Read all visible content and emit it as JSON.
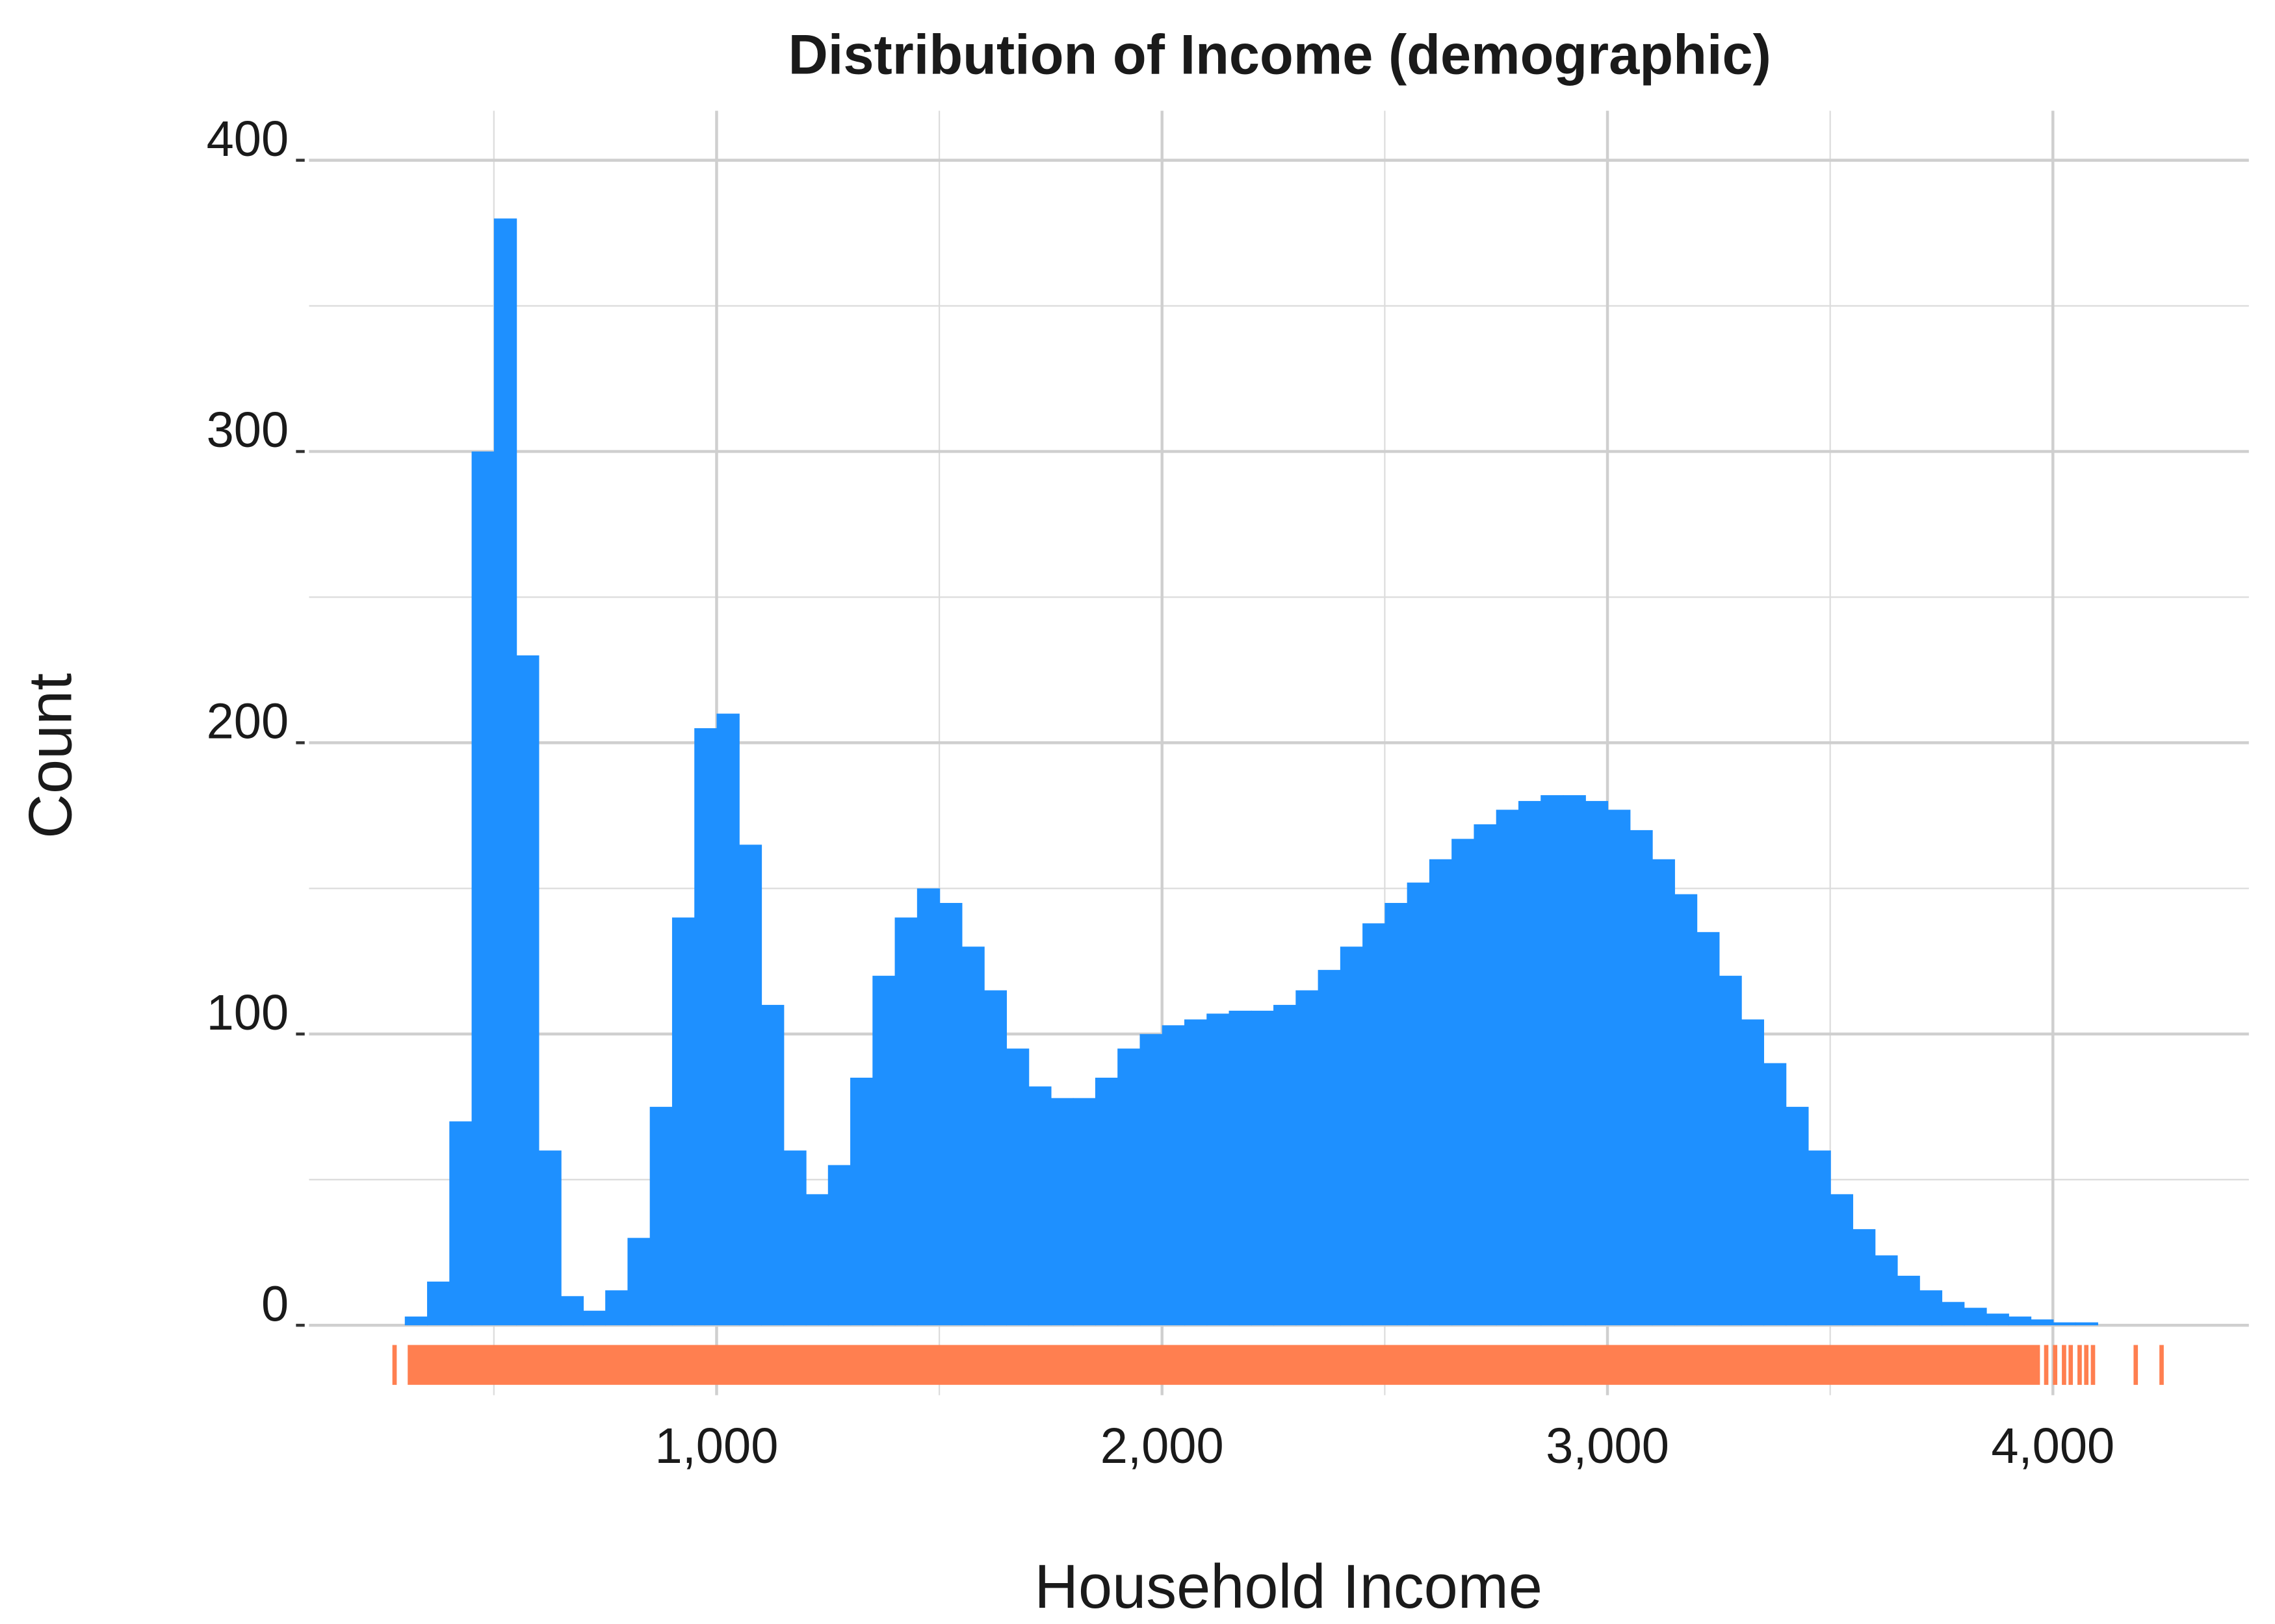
{
  "chart_data": {
    "type": "histogram",
    "title": "Distribution of Income (demographic)",
    "x_label": "Household Income",
    "y_label": "Count",
    "color": "#1e90ff",
    "rug_color": "#ff7f50",
    "bins": [
      250,
      300,
      350,
      400,
      450,
      500,
      550,
      600,
      650,
      700,
      750,
      800,
      850,
      900,
      950,
      1000,
      1050,
      1100,
      1150,
      1200,
      1250,
      1300,
      1350,
      1400,
      1450,
      1500,
      1550,
      1600,
      1650,
      1700,
      1750,
      1800,
      1850,
      1900,
      1950,
      2000,
      2050,
      2100,
      2150,
      2200,
      2250,
      2300,
      2350,
      2400,
      2450,
      2500,
      2550,
      2600,
      2650,
      2700,
      2750,
      2800,
      2850,
      2900,
      2950,
      3000,
      3050,
      3100,
      3150,
      3200,
      3250,
      3300,
      3350,
      3400,
      3450,
      3500,
      3550,
      3600,
      3650,
      3700,
      3750,
      3800,
      3850,
      3900,
      3950,
      4000,
      4050,
      4100,
      4150,
      4200,
      4250
    ],
    "values": [
      0,
      3,
      15,
      70,
      300,
      380,
      230,
      60,
      10,
      5,
      12,
      30,
      75,
      140,
      205,
      210,
      165,
      110,
      60,
      45,
      55,
      85,
      120,
      140,
      150,
      145,
      130,
      115,
      95,
      82,
      78,
      78,
      85,
      95,
      100,
      103,
      105,
      107,
      108,
      108,
      110,
      115,
      122,
      130,
      138,
      145,
      152,
      160,
      167,
      172,
      177,
      180,
      182,
      182,
      180,
      177,
      170,
      160,
      148,
      135,
      120,
      105,
      90,
      75,
      60,
      45,
      33,
      24,
      17,
      12,
      8,
      6,
      4,
      3,
      2,
      1,
      1,
      0,
      0,
      0
    ],
    "rug_x": [
      277,
      3985,
      4005,
      4025,
      4040,
      4060,
      4075,
      4090,
      4186,
      4244
    ],
    "xlim": [
      85,
      4440
    ],
    "ylim": [
      -24,
      417
    ],
    "xticks": [
      {
        "value": 1000,
        "label": "1,000"
      },
      {
        "value": 2000,
        "label": "2,000"
      },
      {
        "value": 3000,
        "label": "3,000"
      },
      {
        "value": 4000,
        "label": "4,000"
      }
    ],
    "yticks": [
      0,
      100,
      200,
      300,
      400
    ],
    "x_minor_grid": [
      500,
      1500,
      2500,
      3500
    ],
    "y_minor_grid": [
      50,
      150,
      250,
      350
    ],
    "grid": true
  }
}
